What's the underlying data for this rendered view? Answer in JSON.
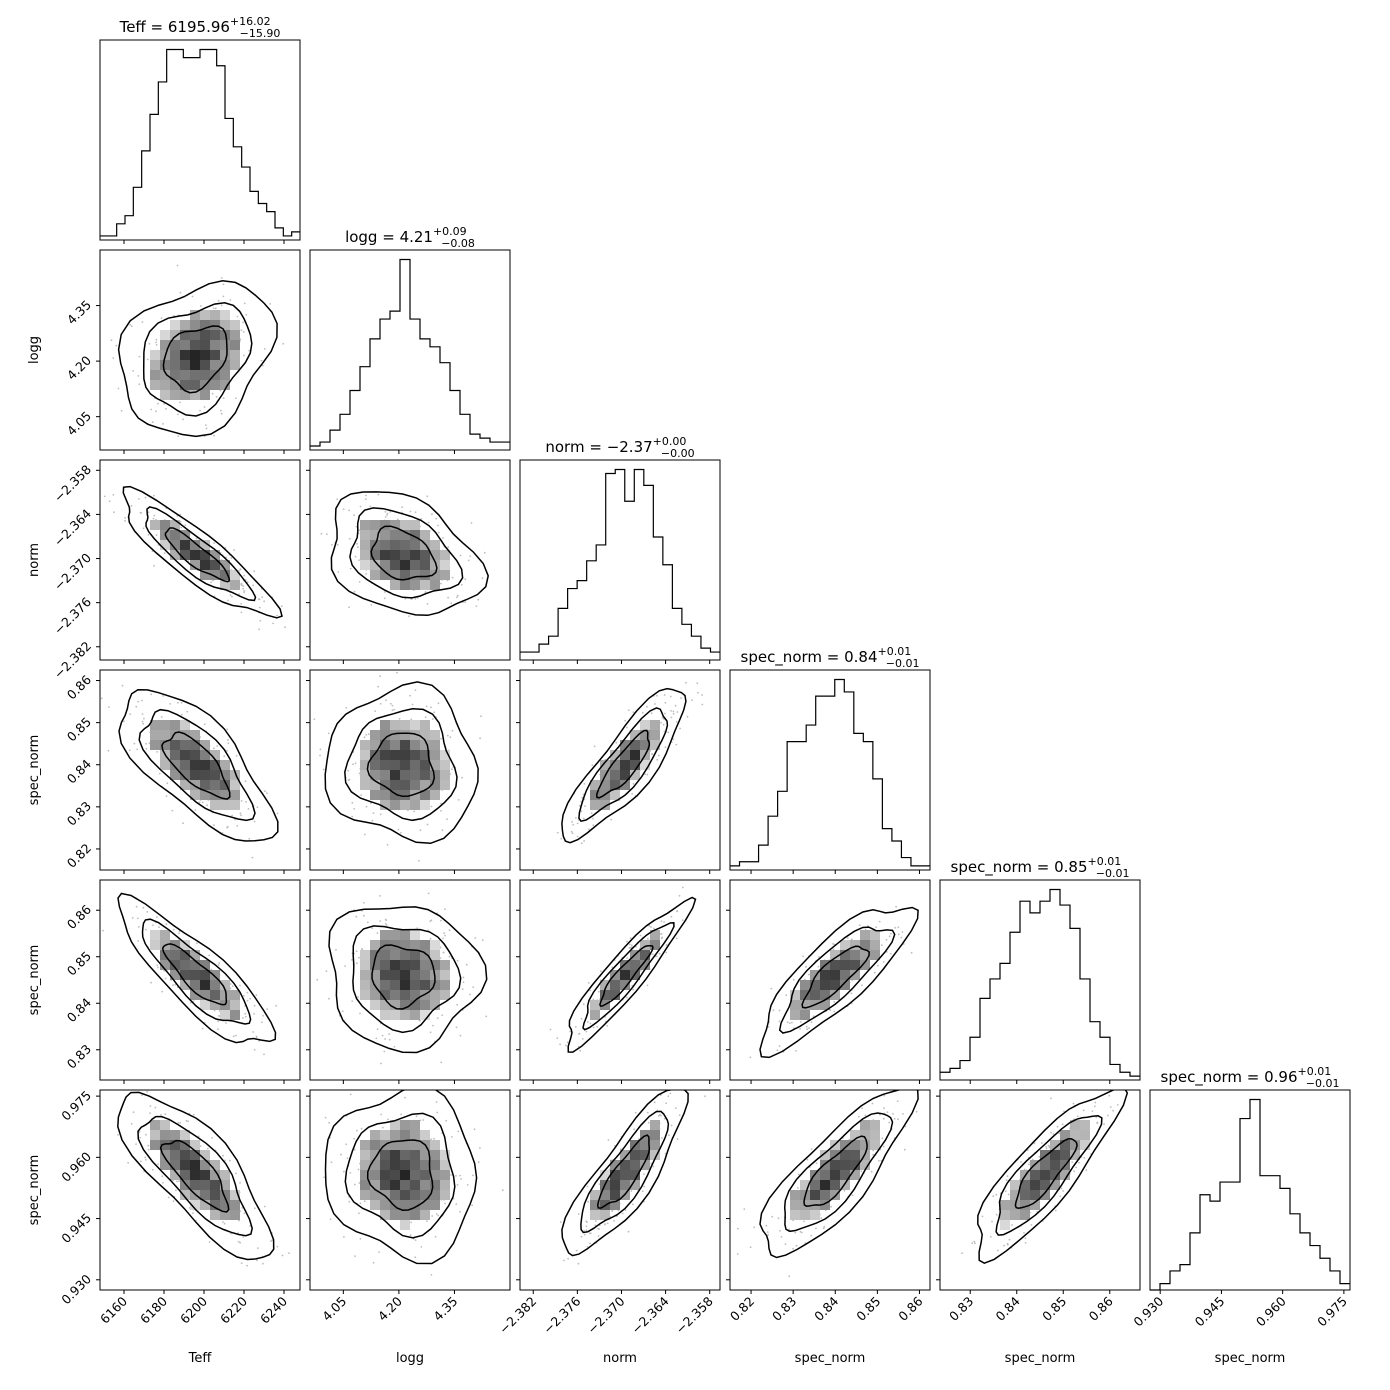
{
  "chart_data": {
    "type": "corner",
    "parameters": [
      {
        "name": "Teff",
        "median": "6195.96",
        "plus": "+16.02",
        "minus": "−15.90",
        "range": [
          6148,
          6248
        ],
        "ticks": [
          6160,
          6180,
          6200,
          6220,
          6240
        ],
        "tick_labels": [
          "6160",
          "6180",
          "6200",
          "6220",
          "6240"
        ]
      },
      {
        "name": "logg",
        "median": "4.21",
        "plus": "+0.09",
        "minus": "−0.08",
        "range": [
          3.96,
          4.5
        ],
        "ticks": [
          4.05,
          4.2,
          4.35
        ],
        "tick_labels": [
          "4.05",
          "4.20",
          "4.35"
        ]
      },
      {
        "name": "norm",
        "median": "−2.37",
        "plus": "+0.00",
        "minus": "−0.00",
        "range": [
          -2.3838,
          -2.3566
        ],
        "ticks": [
          -2.382,
          -2.376,
          -2.37,
          -2.364,
          -2.358
        ],
        "tick_labels": [
          "−2.382",
          "−2.376",
          "−2.370",
          "−2.364",
          "−2.358"
        ]
      },
      {
        "name": "spec_norm",
        "median": "0.84",
        "plus": "+0.01",
        "minus": "−0.01",
        "range": [
          0.815,
          0.8625
        ],
        "ticks": [
          0.82,
          0.83,
          0.84,
          0.85,
          0.86
        ],
        "tick_labels": [
          "0.82",
          "0.83",
          "0.84",
          "0.85",
          "0.86"
        ]
      },
      {
        "name": "spec_norm",
        "median": "0.85",
        "plus": "+0.01",
        "minus": "−0.01",
        "range": [
          0.8235,
          0.8665
        ],
        "ticks": [
          0.83,
          0.84,
          0.85,
          0.86
        ],
        "tick_labels": [
          "0.83",
          "0.84",
          "0.85",
          "0.86"
        ]
      },
      {
        "name": "spec_norm",
        "median": "0.96",
        "plus": "+0.01",
        "minus": "−0.01",
        "range": [
          0.9275,
          0.9765
        ],
        "ticks": [
          0.93,
          0.945,
          0.96,
          0.975
        ],
        "tick_labels": [
          "0.930",
          "0.945",
          "0.960",
          "0.975"
        ]
      }
    ],
    "histograms": [
      [
        1,
        1,
        4,
        6,
        13,
        22,
        31,
        39,
        47,
        47,
        45,
        45,
        47,
        47,
        43,
        30,
        23,
        18,
        12,
        9,
        7,
        3,
        1,
        2
      ],
      [
        1,
        2,
        5,
        9,
        15,
        21,
        28,
        33,
        35,
        48,
        33,
        28,
        26,
        22,
        15,
        9,
        4,
        3,
        2,
        2
      ],
      [
        2,
        2,
        4,
        6,
        13,
        18,
        20,
        25,
        29,
        47,
        48,
        40,
        48,
        44,
        31,
        24,
        13,
        9,
        6,
        3,
        2
      ],
      [
        1,
        2,
        2,
        6,
        13,
        19,
        31,
        31,
        35,
        42,
        42,
        46,
        43,
        33,
        31,
        22,
        10,
        7,
        3,
        1,
        1
      ],
      [
        2,
        3,
        5,
        11,
        21,
        26,
        30,
        38,
        46,
        43,
        46,
        49,
        45,
        39,
        26,
        15,
        11,
        4,
        2,
        1
      ],
      [
        0,
        1,
        3,
        4,
        9,
        15,
        14,
        17,
        17,
        27,
        30,
        18,
        18,
        16,
        12,
        9,
        7,
        5,
        3,
        1
      ]
    ],
    "pairs": [
      {
        "x": 0,
        "y": 1,
        "mean": [
          6196,
          4.21
        ],
        "sd": [
          15.9,
          0.085
        ],
        "r": 0.25
      },
      {
        "x": 0,
        "y": 2,
        "mean": [
          6196,
          -2.3695
        ],
        "sd": [
          15.9,
          0.0035
        ],
        "r": -0.88
      },
      {
        "x": 1,
        "y": 2,
        "mean": [
          4.21,
          -2.3695
        ],
        "sd": [
          0.085,
          0.0035
        ],
        "r": -0.3
      },
      {
        "x": 0,
        "y": 3,
        "mean": [
          6196,
          0.84
        ],
        "sd": [
          15.9,
          0.0075
        ],
        "r": -0.7
      },
      {
        "x": 1,
        "y": 3,
        "mean": [
          4.21,
          0.84
        ],
        "sd": [
          0.085,
          0.0075
        ],
        "r": -0.05
      },
      {
        "x": 2,
        "y": 3,
        "mean": [
          -2.3695,
          0.84
        ],
        "sd": [
          0.0035,
          0.0075
        ],
        "r": 0.85
      },
      {
        "x": 0,
        "y": 4,
        "mean": [
          6196,
          0.846
        ],
        "sd": [
          15.9,
          0.0065
        ],
        "r": -0.85
      },
      {
        "x": 1,
        "y": 4,
        "mean": [
          4.21,
          0.846
        ],
        "sd": [
          0.085,
          0.0065
        ],
        "r": -0.05
      },
      {
        "x": 2,
        "y": 4,
        "mean": [
          -2.3695,
          0.846
        ],
        "sd": [
          0.0035,
          0.0065
        ],
        "r": 0.92
      },
      {
        "x": 3,
        "y": 4,
        "mean": [
          0.84,
          0.846
        ],
        "sd": [
          0.0075,
          0.0065
        ],
        "r": 0.82
      },
      {
        "x": 0,
        "y": 5,
        "mean": [
          6196,
          0.956
        ],
        "sd": [
          15.9,
          0.0085
        ],
        "r": -0.78
      },
      {
        "x": 1,
        "y": 5,
        "mean": [
          4.21,
          0.956
        ],
        "sd": [
          0.085,
          0.0085
        ],
        "r": -0.05
      },
      {
        "x": 2,
        "y": 5,
        "mean": [
          -2.3695,
          0.956
        ],
        "sd": [
          0.0035,
          0.0085
        ],
        "r": 0.85
      },
      {
        "x": 3,
        "y": 5,
        "mean": [
          0.84,
          0.956
        ],
        "sd": [
          0.0075,
          0.0085
        ],
        "r": 0.82
      },
      {
        "x": 4,
        "y": 5,
        "mean": [
          0.846,
          0.956
        ],
        "sd": [
          0.0065,
          0.0085
        ],
        "r": 0.85
      }
    ],
    "grid": false
  }
}
